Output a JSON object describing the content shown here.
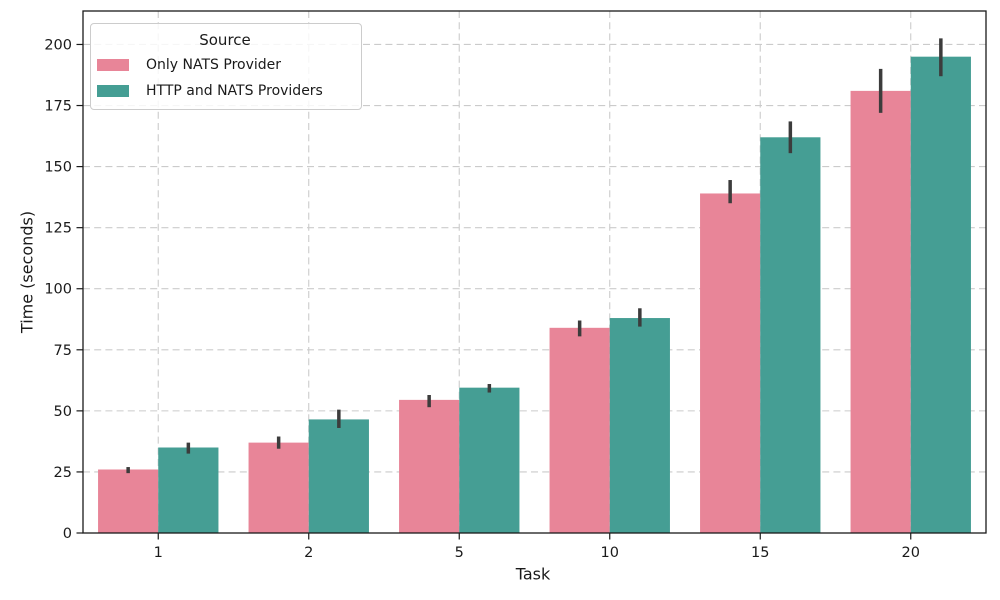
{
  "chart_data": {
    "type": "bar",
    "title": "",
    "xlabel": "Task",
    "ylabel": "Time (seconds)",
    "categories": [
      "1",
      "2",
      "5",
      "10",
      "15",
      "20"
    ],
    "yticks": [
      0,
      25,
      50,
      75,
      100,
      125,
      150,
      175,
      200
    ],
    "ylim": [
      0,
      213.7
    ],
    "grid": {
      "style": "dashed",
      "axes": "both",
      "color": "#cbcbcb"
    },
    "legend": {
      "title": "Source",
      "position": "upper left"
    },
    "error_bar_color": "#3c3c3c",
    "series": [
      {
        "name": "Only NATS Provider",
        "color": "#e88598",
        "values": [
          26,
          37,
          54.5,
          84,
          139,
          181
        ],
        "err_low": [
          24.5,
          34.5,
          51.5,
          80.5,
          135,
          172
        ],
        "err_high": [
          27,
          39.5,
          56.5,
          87,
          144.5,
          190
        ]
      },
      {
        "name": "HTTP and NATS Providers",
        "color": "#459e94",
        "values": [
          35,
          46.5,
          59.5,
          88,
          162,
          195
        ],
        "err_low": [
          32.5,
          43,
          57.5,
          84.5,
          155.5,
          187
        ],
        "err_high": [
          37,
          50.5,
          61,
          92,
          168.5,
          202.5
        ]
      }
    ]
  }
}
